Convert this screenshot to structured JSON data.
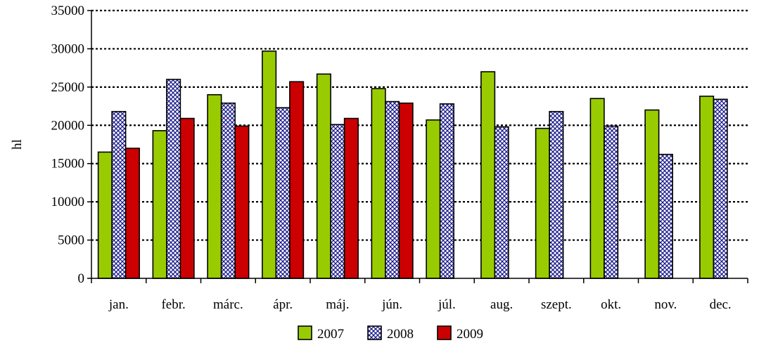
{
  "chart_data": {
    "type": "bar",
    "title": "",
    "xlabel": "",
    "ylabel": "hl",
    "ylim": [
      0,
      35000
    ],
    "yticks": [
      0,
      5000,
      10000,
      15000,
      20000,
      25000,
      30000,
      35000
    ],
    "grid": true,
    "legend_position": "bottom",
    "categories": [
      "jan.",
      "febr.",
      "márc.",
      "ápr.",
      "máj.",
      "jún.",
      "júl.",
      "aug.",
      "szept.",
      "okt.",
      "nov.",
      "dec."
    ],
    "series": [
      {
        "name": "2007",
        "pattern": "solid",
        "color": "#99cc00",
        "values": [
          16500,
          19300,
          24000,
          29700,
          26700,
          24800,
          20700,
          27000,
          19600,
          23500,
          22000,
          23800
        ]
      },
      {
        "name": "2008",
        "pattern": "crosshatch",
        "color": "#1a1a8c",
        "values": [
          21800,
          26000,
          22900,
          22300,
          20100,
          23100,
          22800,
          19800,
          21800,
          19900,
          16200,
          23400
        ]
      },
      {
        "name": "2009",
        "pattern": "solid",
        "color": "#cc0000",
        "values": [
          17000,
          20900,
          19900,
          25700,
          20900,
          22900,
          null,
          null,
          null,
          null,
          null,
          null
        ]
      }
    ]
  }
}
